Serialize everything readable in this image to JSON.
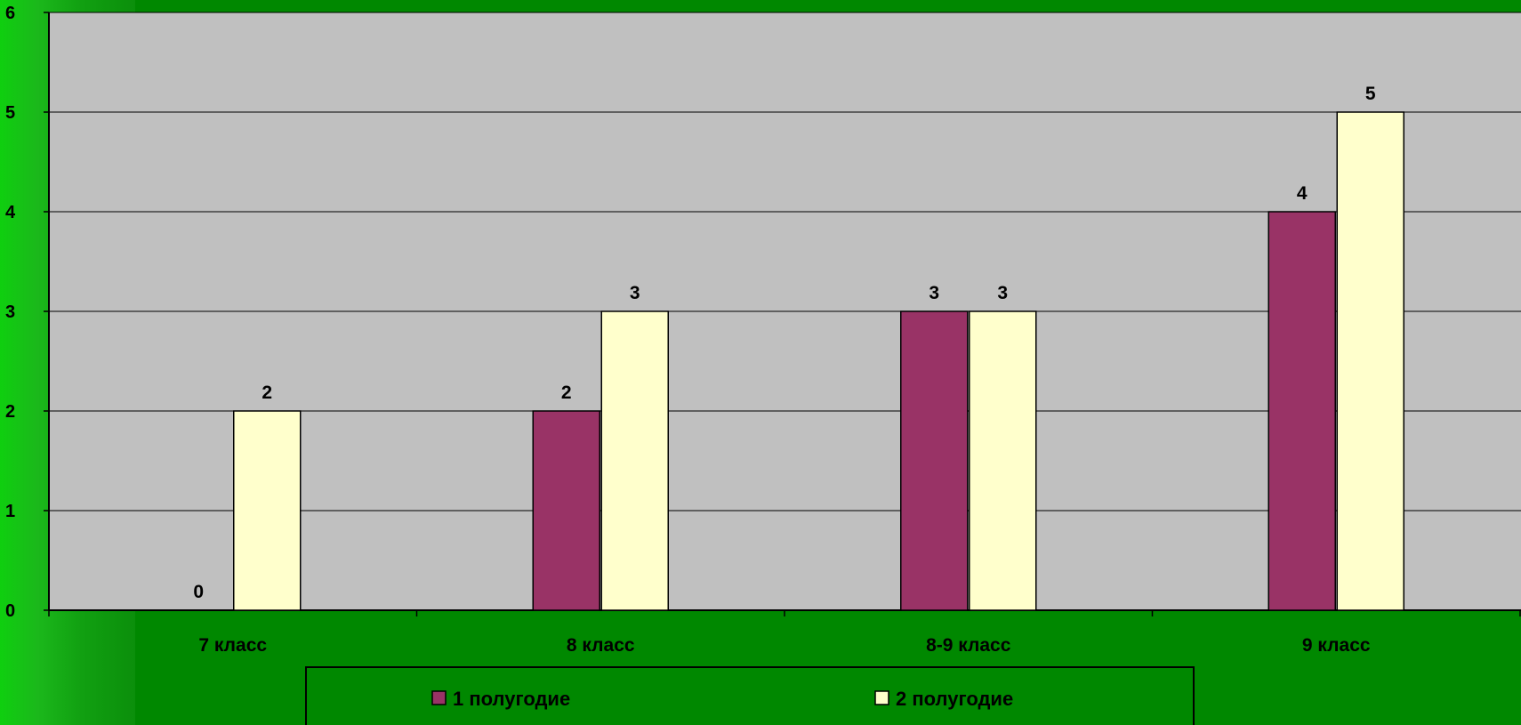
{
  "chart_data": {
    "type": "bar",
    "categories": [
      "7 класс",
      "8 класс",
      "8-9 класс",
      "9 класс"
    ],
    "series": [
      {
        "name": "1 полугодие",
        "values": [
          0,
          2,
          3,
          4
        ],
        "color": "#993366"
      },
      {
        "name": "2 полугодие",
        "values": [
          2,
          3,
          3,
          5
        ],
        "color": "#FFFFCC"
      }
    ],
    "ylim": [
      0,
      6
    ],
    "yticks": [
      0,
      1,
      2,
      3,
      4,
      5,
      6
    ],
    "grid": true,
    "legend": "bottom",
    "data_labels": true,
    "colors": {
      "background": "#008800",
      "plot_area": "#C0C0C0",
      "gridline": "#000000"
    }
  }
}
